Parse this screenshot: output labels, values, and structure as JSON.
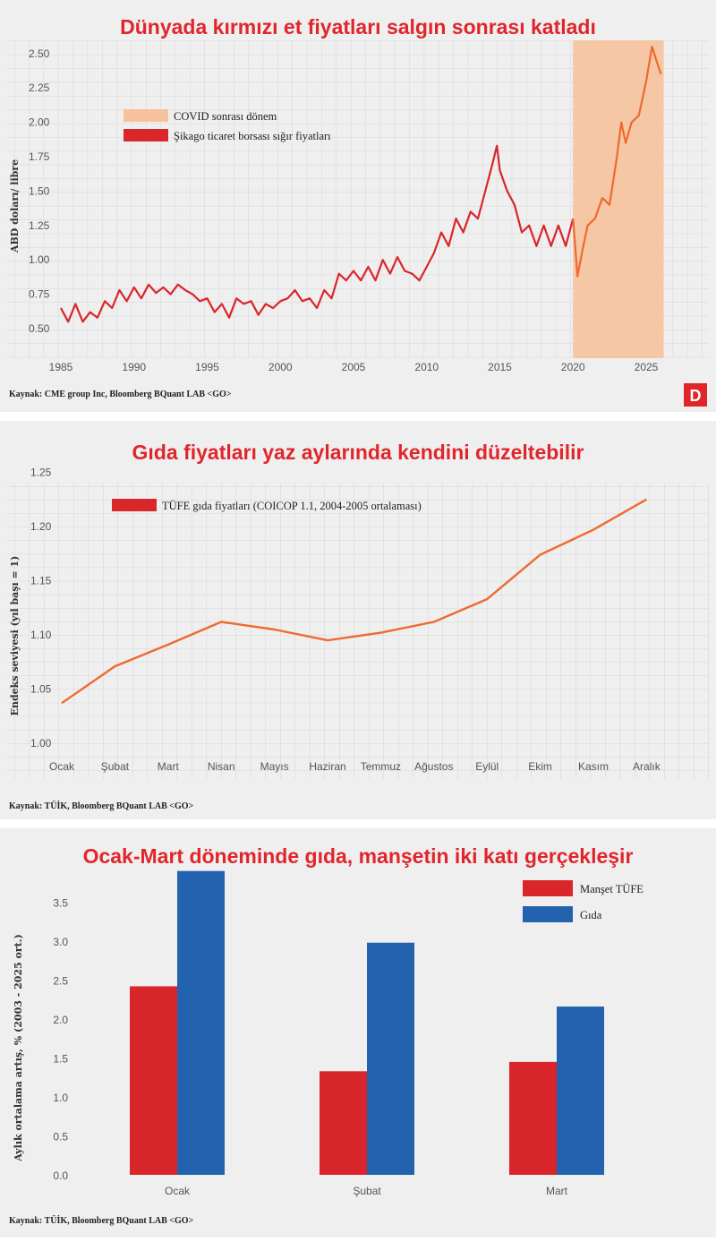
{
  "colors": {
    "red": "#d9262b",
    "orange": "#ee6a30",
    "covid_shade": "#f6c29b",
    "blue": "#2262ae",
    "title": "#e0262b",
    "panel_bg": "#efefef",
    "grid": "#d6d6d6"
  },
  "logo": {
    "text": "D",
    "icon": "d-logo"
  },
  "chart_data": [
    {
      "type": "line",
      "title": "Dünyada kırmızı et fiyatları salgın sonrası katladı",
      "ylabel": "ABD doları/ libre",
      "xlabel": "",
      "xlim": [
        1984,
        2029
      ],
      "ylim": [
        0.3,
        2.6
      ],
      "grid": true,
      "legend_position": "top-left",
      "x_ticks": [
        "1985",
        "1990",
        "1995",
        "2000",
        "2005",
        "2010",
        "2015",
        "2020",
        "2025"
      ],
      "y_ticks": [
        "0.50",
        "0.75",
        "1.00",
        "1.25",
        "1.50",
        "1.75",
        "2.00",
        "2.25",
        "2.50"
      ],
      "shaded_region": {
        "label": "COVID sonrası dönem",
        "from": 2020,
        "to": 2026.2
      },
      "series": [
        {
          "name": "Şikago ticaret borsası sığır fiyatları",
          "x": [
            1985,
            1985.5,
            1986,
            1986.5,
            1987,
            1987.5,
            1988,
            1988.5,
            1989,
            1989.5,
            1990,
            1990.5,
            1991,
            1991.5,
            1992,
            1992.5,
            1993,
            1993.5,
            1994,
            1994.5,
            1995,
            1995.5,
            1996,
            1996.5,
            1997,
            1997.5,
            1998,
            1998.5,
            1999,
            1999.5,
            2000,
            2000.5,
            2001,
            2001.5,
            2002,
            2002.5,
            2003,
            2003.5,
            2004,
            2004.5,
            2005,
            2005.5,
            2006,
            2006.5,
            2007,
            2007.5,
            2008,
            2008.5,
            2009,
            2009.5,
            2010,
            2010.5,
            2011,
            2011.5,
            2012,
            2012.5,
            2013,
            2013.5,
            2014,
            2014.5,
            2014.8,
            2015,
            2015.5,
            2016,
            2016.5,
            2017,
            2017.5,
            2018,
            2018.5,
            2019,
            2019.5,
            2020,
            2020.3,
            2020.7,
            2021,
            2021.5,
            2022,
            2022.5,
            2023,
            2023.3,
            2023.6,
            2024,
            2024.5,
            2025,
            2025.4,
            2025.7,
            2026
          ],
          "y": [
            0.65,
            0.55,
            0.68,
            0.55,
            0.62,
            0.58,
            0.7,
            0.65,
            0.78,
            0.7,
            0.8,
            0.72,
            0.82,
            0.76,
            0.8,
            0.75,
            0.82,
            0.78,
            0.75,
            0.7,
            0.72,
            0.62,
            0.68,
            0.58,
            0.72,
            0.68,
            0.7,
            0.6,
            0.68,
            0.65,
            0.7,
            0.72,
            0.78,
            0.7,
            0.72,
            0.65,
            0.78,
            0.72,
            0.9,
            0.85,
            0.92,
            0.85,
            0.95,
            0.85,
            1.0,
            0.9,
            1.02,
            0.92,
            0.9,
            0.85,
            0.95,
            1.05,
            1.2,
            1.1,
            1.3,
            1.2,
            1.35,
            1.3,
            1.5,
            1.7,
            1.83,
            1.65,
            1.5,
            1.4,
            1.2,
            1.25,
            1.1,
            1.25,
            1.1,
            1.25,
            1.1,
            1.3,
            0.88,
            1.1,
            1.25,
            1.3,
            1.45,
            1.4,
            1.75,
            2.0,
            1.85,
            2.0,
            2.05,
            2.3,
            2.55,
            2.45,
            2.35
          ]
        }
      ],
      "source": "Kaynak: CME group Inc, Bloomberg BQuant LAB <GO>"
    },
    {
      "type": "line",
      "title": "Gıda fiyatları yaz aylarında kendini düzeltebilir",
      "ylabel": "Endeks seviyesi (yıl başı = 1)",
      "xlabel": "",
      "ylim": [
        0.97,
        1.25
      ],
      "grid": true,
      "legend_position": "top-left",
      "categories": [
        "Ocak",
        "Şubat",
        "Mart",
        "Nisan",
        "Mayıs",
        "Haziran",
        "Temmuz",
        "Ağustos",
        "Eylül",
        "Ekim",
        "Kasım",
        "Aralık"
      ],
      "y_ticks": [
        "1.00",
        "1.05",
        "1.10",
        "1.15",
        "1.20",
        "1.25"
      ],
      "series": [
        {
          "name": "TÜFE gıda fiyatları (COICOP 1.1, 2004-2005 ortalaması)",
          "values": [
            1.037,
            1.071,
            1.091,
            1.112,
            1.105,
            1.095,
            1.102,
            1.112,
            1.133,
            1.174,
            1.197,
            1.225
          ]
        }
      ],
      "source": "Kaynak: TÜİK, Bloomberg BQuant LAB <GO>"
    },
    {
      "type": "bar",
      "title": "Ocak-Mart döneminde gıda, manşetin iki katı gerçekleşir",
      "ylabel": "Aylık ortalama artış, % (2003 - 2025 ort.)",
      "xlabel": "",
      "ylim": [
        0,
        4
      ],
      "grid": false,
      "legend_position": "top-right",
      "categories": [
        "Ocak",
        "Şubat",
        "Mart"
      ],
      "y_ticks": [
        "0.0",
        "0.5",
        "1.0",
        "1.5",
        "2.0",
        "2.5",
        "3.0",
        "3.5"
      ],
      "series": [
        {
          "name": "Manşet TÜFE",
          "values": [
            2.42,
            1.33,
            1.45
          ]
        },
        {
          "name": "Gıda",
          "values": [
            3.9,
            2.98,
            2.16
          ]
        }
      ],
      "source": "Kaynak: TÜİK, Bloomberg BQuant LAB <GO>"
    }
  ]
}
